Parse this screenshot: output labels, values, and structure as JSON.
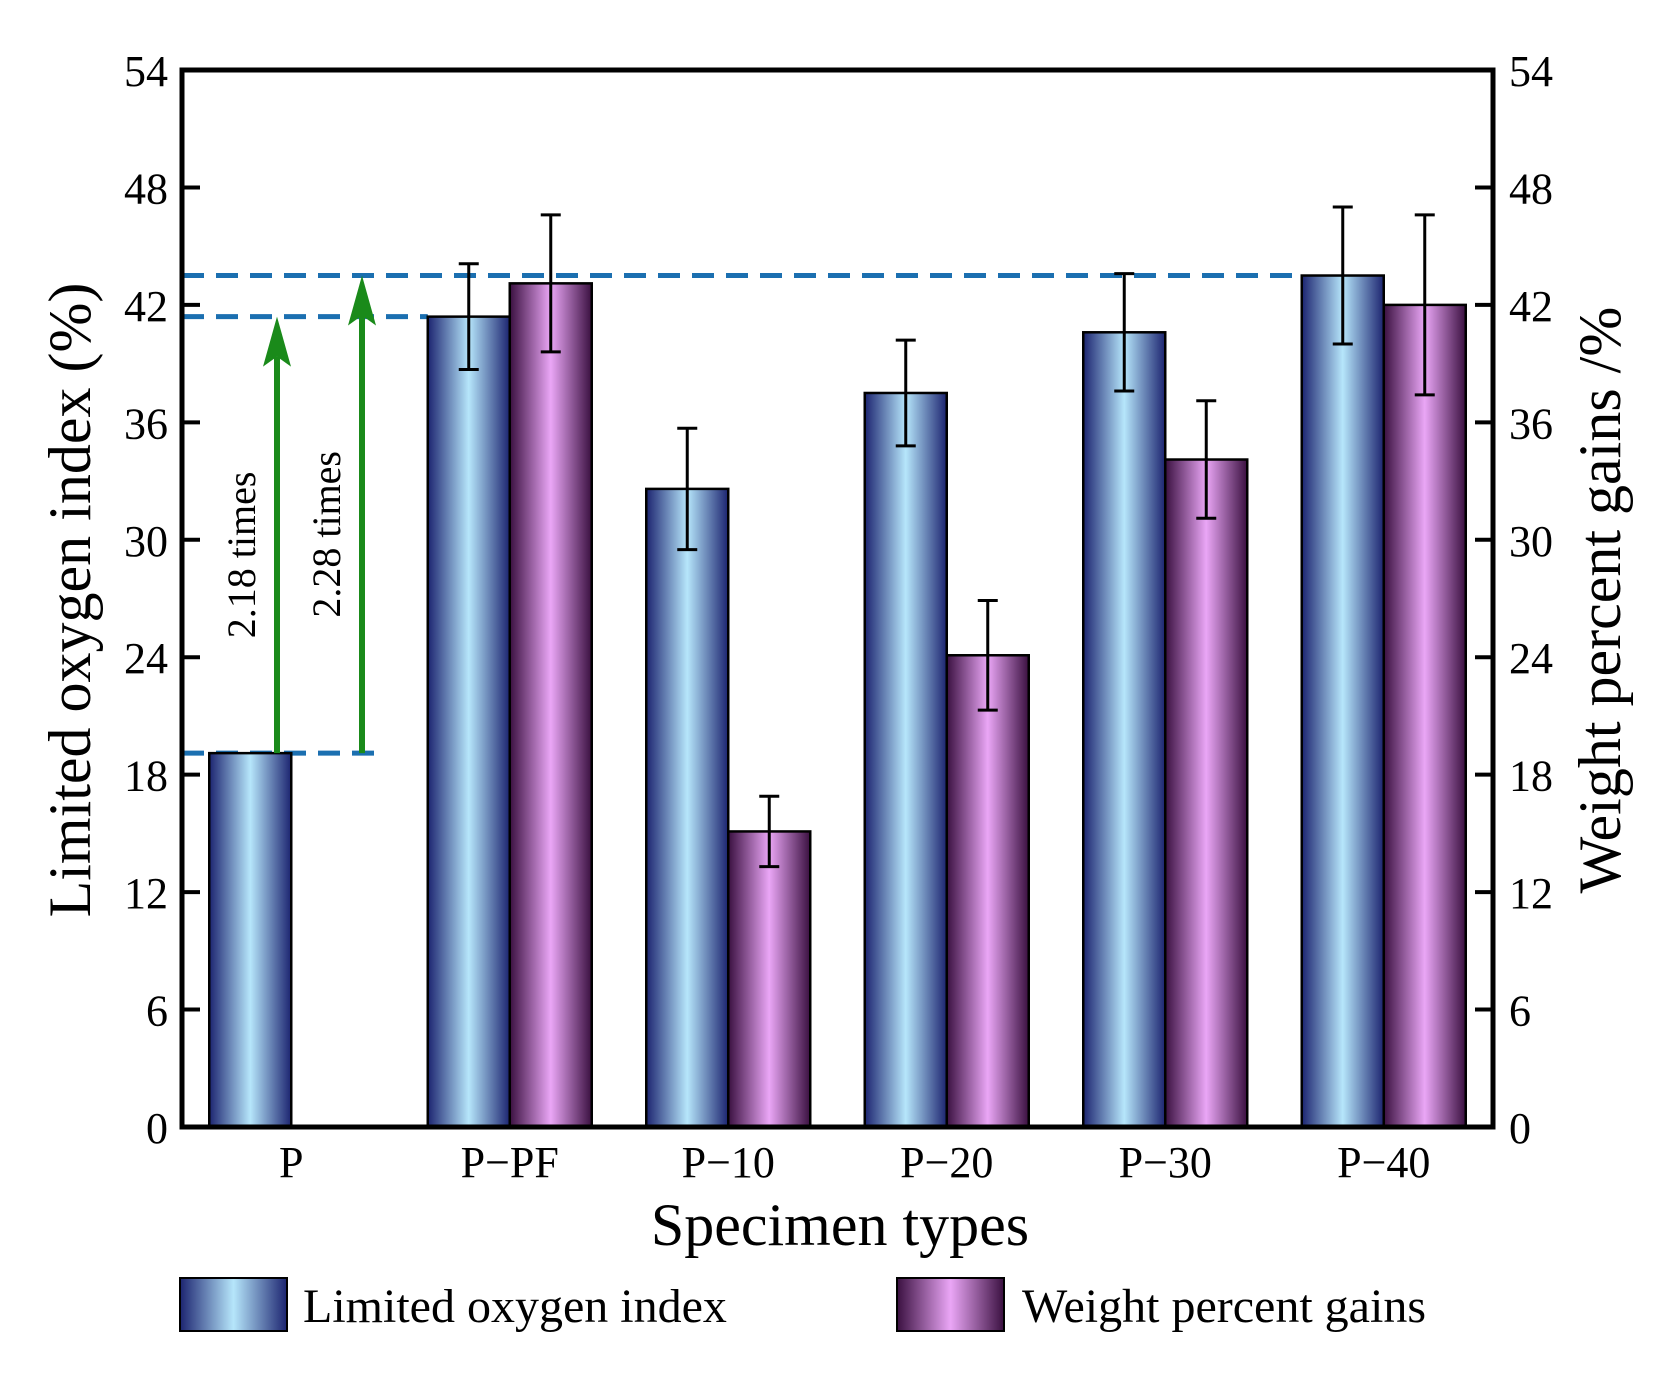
{
  "chart_data": {
    "type": "bar",
    "xlabel": "Specimen types",
    "ylabel_left": "Limited oxygen index (%)",
    "ylabel_right": "Weight percent gains /%",
    "ylim": [
      0,
      54
    ],
    "yticks": [
      0,
      6,
      12,
      18,
      24,
      30,
      36,
      42,
      48,
      54
    ],
    "categories": [
      "P",
      "P−PF",
      "P−10",
      "P−20",
      "P−30",
      "P−40"
    ],
    "series": [
      {
        "name": "Limited oxygen index",
        "values": [
          19.1,
          41.4,
          32.6,
          37.5,
          40.6,
          43.5
        ],
        "errors": [
          null,
          2.7,
          3.1,
          2.7,
          3.0,
          3.5
        ],
        "color_dark": "#1c2470",
        "color_light": "#b6e6fb"
      },
      {
        "name": "Weight percent gains",
        "values": [
          null,
          43.1,
          15.1,
          24.1,
          34.1,
          42.0
        ],
        "errors": [
          null,
          3.5,
          1.8,
          2.8,
          3.0,
          4.6
        ],
        "color_dark": "#3a1040",
        "color_light": "#eaa6f6"
      }
    ],
    "reference_lines": [
      19.1,
      41.4,
      43.5
    ],
    "reference_line_color": "#1b6fb0",
    "annotations": [
      {
        "text": "2.18 times",
        "from": 19.1,
        "to": 41.4
      },
      {
        "text": "2.28 times",
        "from": 19.1,
        "to": 43.5
      }
    ],
    "arrow_color": "#1a8a1a",
    "legend_position": "bottom"
  }
}
